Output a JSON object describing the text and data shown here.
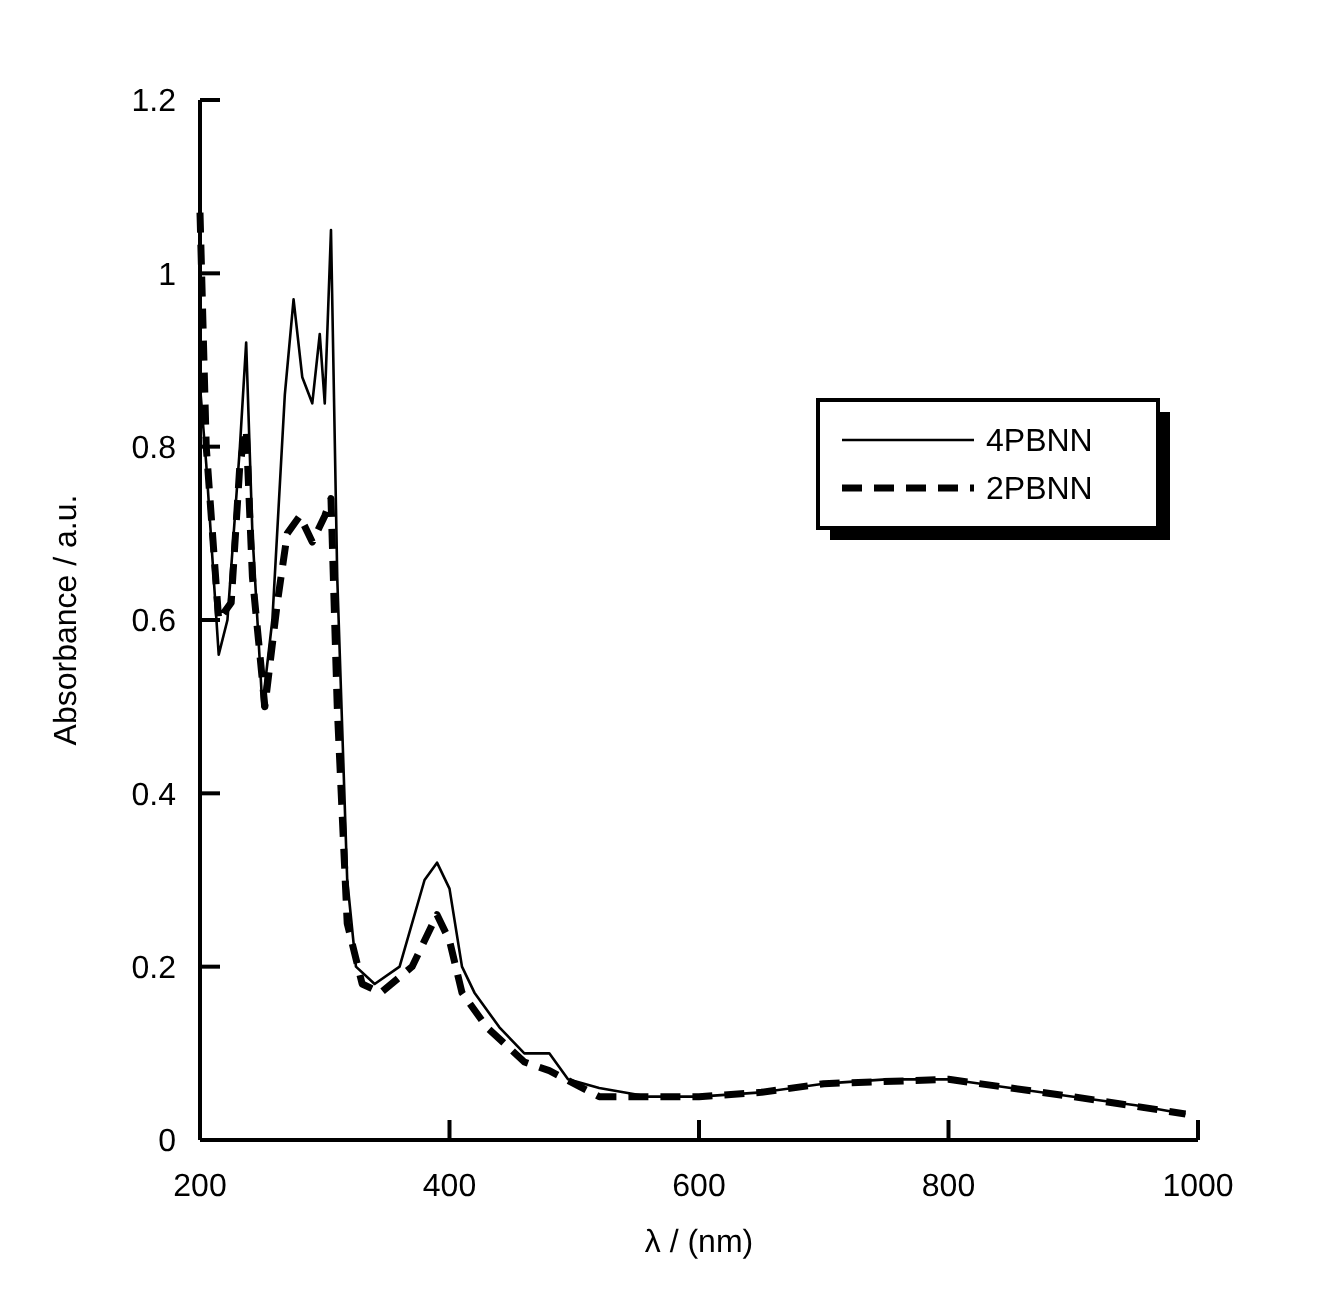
{
  "chart_data": {
    "type": "line",
    "xlabel": "λ / (nm)",
    "ylabel": "Absorbance / a.u.",
    "xlim": [
      200,
      1000
    ],
    "xticks": [
      200,
      400,
      600,
      800,
      1000
    ],
    "ylim": [
      0,
      1.2
    ],
    "yticks": [
      0,
      0.2,
      0.4,
      0.6,
      0.8,
      1,
      1.2
    ],
    "legend": "right",
    "grid": false,
    "series": [
      {
        "name": "4PBNN",
        "color": "#000000",
        "line_style": "solid",
        "x": [
          200,
          205,
          215,
          222,
          232,
          237,
          242,
          250,
          258,
          268,
          275,
          282,
          290,
          296,
          300,
          305,
          310,
          318,
          325,
          340,
          360,
          380,
          390,
          400,
          410,
          420,
          440,
          460,
          480,
          495,
          520,
          560,
          600,
          650,
          700,
          750,
          800,
          850,
          900,
          950,
          990
        ],
        "values": [
          0.87,
          0.78,
          0.56,
          0.6,
          0.8,
          0.92,
          0.7,
          0.5,
          0.6,
          0.86,
          0.97,
          0.88,
          0.85,
          0.93,
          0.85,
          1.05,
          0.65,
          0.3,
          0.2,
          0.18,
          0.2,
          0.3,
          0.32,
          0.29,
          0.2,
          0.17,
          0.13,
          0.1,
          0.1,
          0.07,
          0.06,
          0.05,
          0.05,
          0.055,
          0.065,
          0.07,
          0.07,
          0.06,
          0.05,
          0.04,
          0.03
        ]
      },
      {
        "name": "2PBNN",
        "color": "#000000",
        "line_style": "dashed",
        "x": [
          200,
          205,
          215,
          225,
          232,
          237,
          242,
          252,
          262,
          270,
          280,
          290,
          300,
          305,
          310,
          318,
          330,
          345,
          370,
          390,
          400,
          410,
          430,
          460,
          480,
          520,
          560,
          600,
          650,
          700,
          800,
          900,
          990
        ],
        "values": [
          1.07,
          0.8,
          0.6,
          0.62,
          0.78,
          0.82,
          0.65,
          0.5,
          0.62,
          0.7,
          0.72,
          0.69,
          0.72,
          0.74,
          0.5,
          0.25,
          0.18,
          0.17,
          0.2,
          0.26,
          0.23,
          0.17,
          0.13,
          0.09,
          0.08,
          0.05,
          0.05,
          0.05,
          0.055,
          0.065,
          0.07,
          0.05,
          0.03
        ]
      }
    ]
  }
}
